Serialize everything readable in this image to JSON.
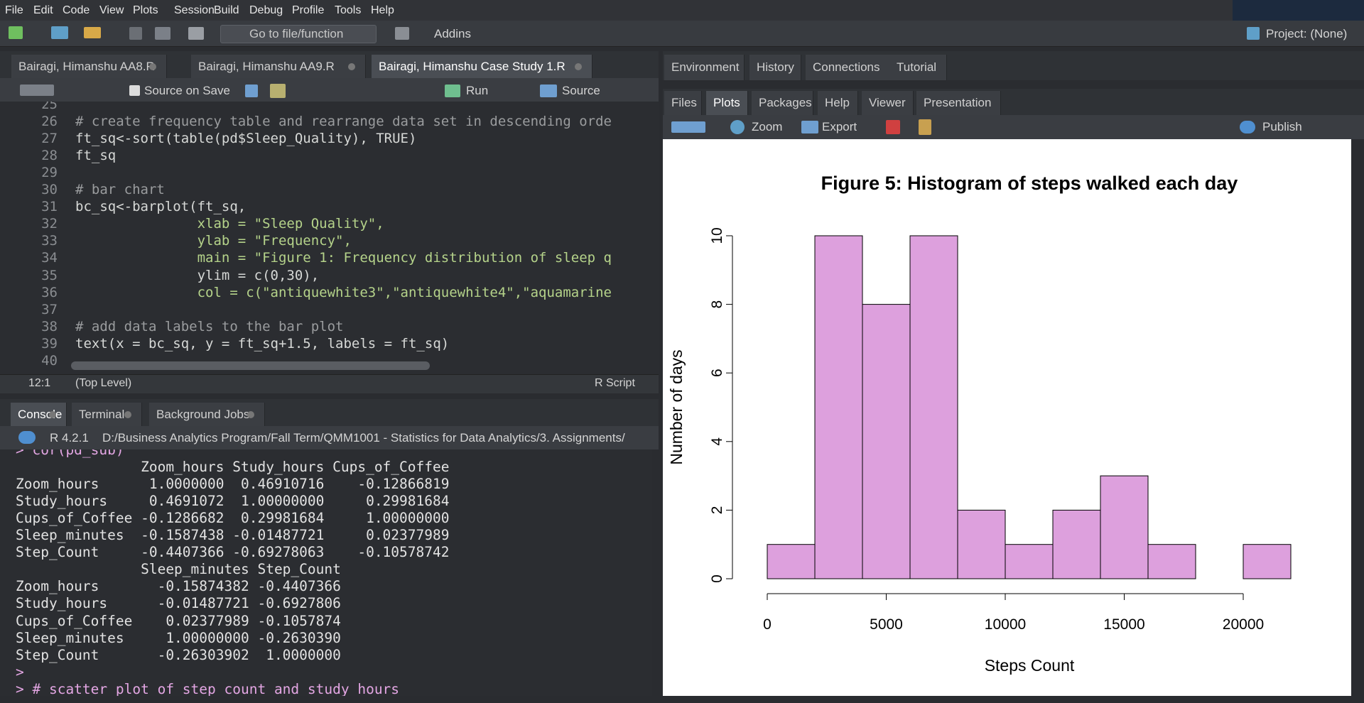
{
  "menu": [
    "File",
    "Edit",
    "Code",
    "View",
    "Plots",
    "Session",
    "Build",
    "Debug",
    "Profile",
    "Tools",
    "Help"
  ],
  "toolbar": {
    "goto": "Go to file/function",
    "addins": "Addins",
    "project": "Project: (None)"
  },
  "source_tabs": [
    "Bairagi, Himanshu AA8.R",
    "Bairagi, Himanshu AA9.R",
    "Bairagi, Himanshu Case Study 1.R"
  ],
  "editor_toolbar": {
    "source_on_save": "Source on Save",
    "run": "Run",
    "source": "Source"
  },
  "code": [
    {
      "n": 25
    },
    {
      "n": 26,
      "text": "# create frequency table and rearrange data set in descending orde"
    },
    {
      "n": 27,
      "text": "ft_sq<-sort(table(pd$Sleep_Quality), TRUE)"
    },
    {
      "n": 28,
      "text": "ft_sq"
    },
    {
      "n": 29
    },
    {
      "n": 30,
      "text": "# bar chart"
    },
    {
      "n": 31,
      "text": "bc_sq<-barplot(ft_sq,"
    },
    {
      "n": 32,
      "text": "               xlab = \"Sleep Quality\","
    },
    {
      "n": 33,
      "text": "               ylab = \"Frequency\","
    },
    {
      "n": 34,
      "text": "               main = \"Figure 1: Frequency distribution of sleep q"
    },
    {
      "n": 35,
      "text": "               ylim = c(0,30),"
    },
    {
      "n": 36,
      "text": "               col = c(\"antiquewhite3\",\"antiquewhite4\",\"aquamarine"
    },
    {
      "n": 37
    },
    {
      "n": 38,
      "text": "# add data labels to the bar plot"
    },
    {
      "n": 39,
      "text": "text(x = bc_sq, y = ft_sq+1.5, labels = ft_sq)"
    },
    {
      "n": 40
    }
  ],
  "editor_status": {
    "position": "12:1",
    "scope": "(Top Level)",
    "file_type": "R Script"
  },
  "console_tabs": [
    "Console",
    "Terminal",
    "Background Jobs"
  ],
  "console_header": {
    "version": "R 4.2.1",
    "path": "D:/Business Analytics Program/Fall Term/QMM1001 - Statistics for Data Analytics/3. Assignments/"
  },
  "console_lines": [
    "> cor(pd_sub)",
    "               Zoom_hours Study_hours Cups_of_Coffee",
    "Zoom_hours      1.0000000  0.46910716    -0.12866819",
    "Study_hours     0.4691072  1.00000000     0.29981684",
    "Cups_of_Coffee -0.1286682  0.29981684     1.00000000",
    "Sleep_minutes  -0.1587438 -0.01487721     0.02377989",
    "Step_Count     -0.4407366 -0.69278063    -0.10578742",
    "               Sleep_minutes Step_Count",
    "Zoom_hours       -0.15874382 -0.4407366",
    "Study_hours      -0.01487721 -0.6927806",
    "Cups_of_Coffee    0.02377989 -0.1057874",
    "Sleep_minutes     1.00000000 -0.2630390",
    "Step_Count       -0.26303902  1.0000000",
    ">",
    "> # scatter plot of step count and study hours"
  ],
  "env_tabs": [
    "Environment",
    "History",
    "Connections",
    "Tutorial"
  ],
  "files_tabs": [
    "Files",
    "Plots",
    "Packages",
    "Help",
    "Viewer",
    "Presentation"
  ],
  "plot_toolbar": {
    "zoom": "Zoom",
    "export": "Export",
    "publish": "Publish"
  },
  "chart_data": {
    "type": "histogram",
    "title": "Figure 5: Histogram of steps walked each day",
    "xlabel": "Steps Count",
    "ylabel": "Number of days",
    "bins": [
      0,
      2000,
      4000,
      6000,
      8000,
      10000,
      12000,
      14000,
      16000,
      18000,
      20000,
      22000
    ],
    "values": [
      1,
      10,
      8,
      10,
      2,
      1,
      2,
      3,
      1,
      0,
      1
    ],
    "color": "#dda0dd",
    "xlim": [
      0,
      22000
    ],
    "xticks": [
      0,
      5000,
      10000,
      15000,
      20000
    ],
    "ylim": [
      0,
      10
    ],
    "yticks": [
      0,
      2,
      4,
      6,
      8,
      10
    ]
  }
}
